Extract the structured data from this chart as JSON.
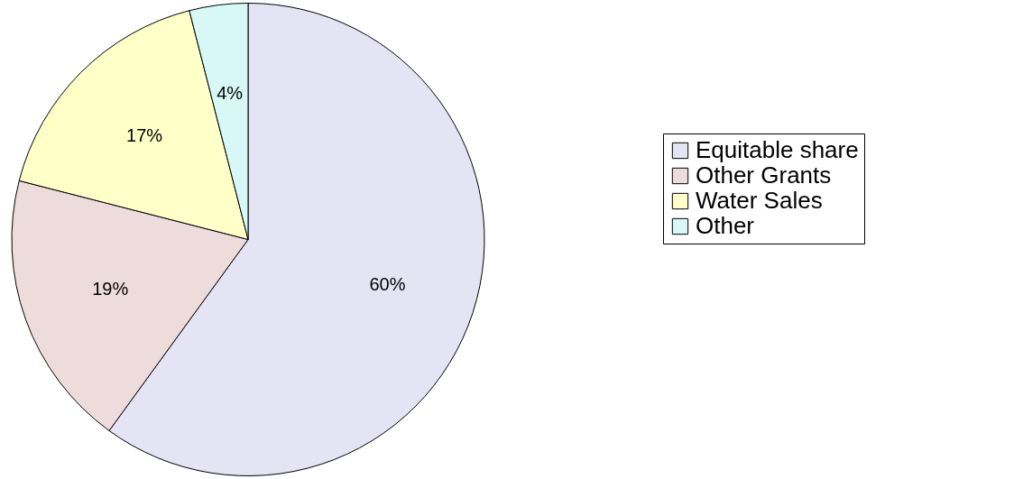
{
  "chart_data": {
    "type": "pie",
    "categories": [
      "Equitable share",
      "Other Grants",
      "Water Sales",
      "Other"
    ],
    "values": [
      60,
      19,
      17,
      4
    ],
    "value_labels": [
      "60%",
      "19%",
      "17%",
      "4%"
    ],
    "colors": [
      "#e4e4f4",
      "#eedcdc",
      "#ffffc8",
      "#d8f8f8"
    ],
    "legend": "right"
  }
}
